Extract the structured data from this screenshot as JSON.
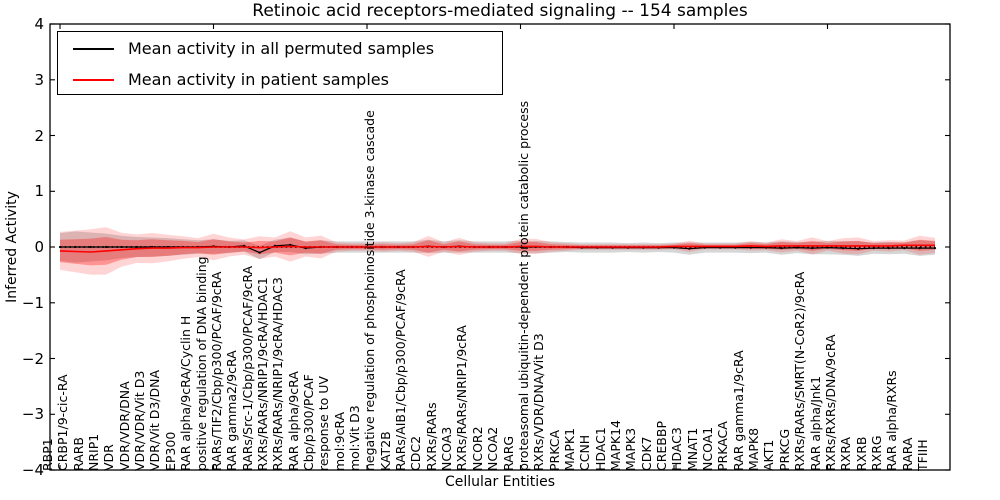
{
  "title": "Retinoic acid receptors-mediated signaling -- 154 samples",
  "axes": {
    "ylabel": "Inferred Activity",
    "xlabel": "Cellular Entities",
    "yticks": [
      4,
      3,
      2,
      1,
      0,
      -1,
      -2,
      -3,
      -4
    ],
    "ylim": [
      -4,
      4
    ]
  },
  "legend": {
    "entries": [
      {
        "label": "Mean activity in all permuted samples",
        "color": "#000000"
      },
      {
        "label": "Mean activity in patient samples",
        "color": "#ff0000"
      }
    ]
  },
  "colors": {
    "permuted_line": "#000000",
    "patient_line": "#ff0000",
    "permuted_band": "rgba(0,0,0,0.16)",
    "patient_band_outer": "rgba(255,0,0,0.17)",
    "patient_band_inner": "rgba(255,0,0,0.30)"
  },
  "chart_data": {
    "type": "line",
    "title": "Retinoic acid receptors-mediated signaling -- 154 samples",
    "xlabel": "Cellular Entities",
    "ylabel": "Inferred Activity",
    "ylim": [
      -4,
      4
    ],
    "yticks": [
      4,
      3,
      2,
      1,
      0,
      -1,
      -2,
      -3,
      -4
    ],
    "grid": false,
    "legend_position": "upper left",
    "zero_line_dotted": true,
    "categories": [
      "RBP1",
      "CRBP1/9-cic-RA",
      "RARB",
      "NRIP1",
      "VDR",
      "VDR/VDR/DNA",
      "VDR/VDR/Vit D3",
      "VDR/Vit D3/DNA",
      "EP300",
      "RAR alpha/9cRA/Cyclin H",
      "positive regulation of DNA binding",
      "RARs/TIF2/Cbp/p300/PCAF/9cRA",
      "RAR gamma2/9cRA",
      "RARs/Src-1/Cbp/p300/PCAF/9cRA",
      "RXRs/RARs/NRIP1/9cRA/HDAC1",
      "RXRs/RARs/NRIP1/9cRA/HDAC3",
      "RAR alpha/9cRA",
      "Cbp/p300/PCAF",
      "response to UV",
      "mol:9cRA",
      "mol:Vit D3",
      "negative regulation of phosphoinositide 3-kinase cascade",
      "KAT2B",
      "RARs/AIB1/Cbp/p300/PCAF/9cRA",
      "CDC2",
      "RXRs/RARs",
      "NCOA3",
      "RXRs/RARs/NRIP1/9cRA",
      "NCOR2",
      "NCOA2",
      "RARG",
      "proteasomal ubiquitin-dependent protein catabolic process",
      "RXRs/VDR/DNA/Vit D3",
      "PRKCA",
      "MAPK1",
      "CCNH",
      "HDAC1",
      "MAPK14",
      "MAPK3",
      "CDK7",
      "CREBBP",
      "HDAC3",
      "MNAT1",
      "NCOA1",
      "PRKACA",
      "RAR gamma1/9cRA",
      "MAPK8",
      "AKT1",
      "PRKCG",
      "RXRs/RARs/SMRT(N-CoR2)/9cRA",
      "RAR alpha/Jnk1",
      "RXRs/RXRs/DNA/9cRA",
      "RXRA",
      "RXRB",
      "RXRG",
      "RAR alpha/RXRs",
      "RARA",
      "TFIIH"
    ],
    "series": [
      {
        "name": "Mean activity in all permuted samples",
        "color": "#000000",
        "values": [
          0,
          0,
          0,
          0,
          0,
          0,
          0,
          0,
          0,
          0,
          0.01,
          0,
          0.02,
          -0.1,
          0.02,
          0.04,
          -0.02,
          0,
          0,
          0,
          0,
          0,
          0,
          0,
          0.01,
          0,
          0.01,
          0,
          0,
          0,
          0,
          0,
          0,
          0,
          -0.01,
          -0.01,
          -0.01,
          -0.01,
          -0.01,
          -0.01,
          -0.01,
          -0.03,
          -0.01,
          -0.01,
          -0.01,
          -0.01,
          -0.01,
          -0.02,
          -0.01,
          -0.02,
          -0.01,
          -0.02,
          -0.03,
          -0.02,
          -0.02,
          -0.02,
          -0.02,
          -0.02
        ],
        "band_halfwidth": [
          0.25,
          0.28,
          0.26,
          0.24,
          0.2,
          0.18,
          0.17,
          0.16,
          0.14,
          0.12,
          0.13,
          0.11,
          0.1,
          0.12,
          0.11,
          0.13,
          0.11,
          0.12,
          0.1,
          0.1,
          0.1,
          0.1,
          0.1,
          0.1,
          0.12,
          0.1,
          0.11,
          0.1,
          0.1,
          0.1,
          0.11,
          0.11,
          0.1,
          0.09,
          0.09,
          0.09,
          0.09,
          0.08,
          0.09,
          0.08,
          0.09,
          0.11,
          0.09,
          0.09,
          0.09,
          0.1,
          0.09,
          0.12,
          0.1,
          0.11,
          0.12,
          0.12,
          0.13,
          0.1,
          0.11,
          0.1,
          0.14,
          0.12
        ]
      },
      {
        "name": "Mean activity in patient samples",
        "color": "#ff0000",
        "values": [
          -0.07,
          -0.08,
          -0.09,
          -0.07,
          -0.05,
          -0.03,
          -0.02,
          -0.02,
          -0.01,
          -0.01,
          0,
          0,
          0,
          -0.01,
          0,
          0.01,
          0,
          0,
          0,
          0,
          0,
          0,
          0,
          0,
          0.01,
          0,
          0.01,
          0,
          0,
          0,
          0.01,
          0.01,
          0,
          0,
          0,
          0,
          0,
          0,
          0,
          0,
          0.01,
          0.01,
          0.01,
          0.01,
          0.01,
          0.02,
          0.01,
          0.02,
          0.02,
          0.02,
          0.02,
          0.02,
          0.02,
          0.02,
          0.02,
          0.03,
          0.03,
          0.03
        ],
        "band_halfwidth": [
          0.2,
          0.22,
          0.24,
          0.25,
          0.18,
          0.15,
          0.16,
          0.14,
          0.12,
          0.1,
          0.14,
          0.1,
          0.08,
          0.12,
          0.1,
          0.16,
          0.1,
          0.12,
          0.05,
          0.04,
          0.04,
          0.05,
          0.04,
          0.05,
          0.11,
          0.05,
          0.09,
          0.05,
          0.04,
          0.04,
          0.08,
          0.08,
          0.05,
          0.04,
          0.03,
          0.03,
          0.03,
          0.03,
          0.03,
          0.03,
          0.03,
          0.06,
          0.03,
          0.03,
          0.03,
          0.05,
          0.04,
          0.07,
          0.05,
          0.09,
          0.05,
          0.08,
          0.09,
          0.05,
          0.06,
          0.05,
          0.1,
          0.08
        ],
        "outer_band_scale": 1.7
      }
    ]
  }
}
